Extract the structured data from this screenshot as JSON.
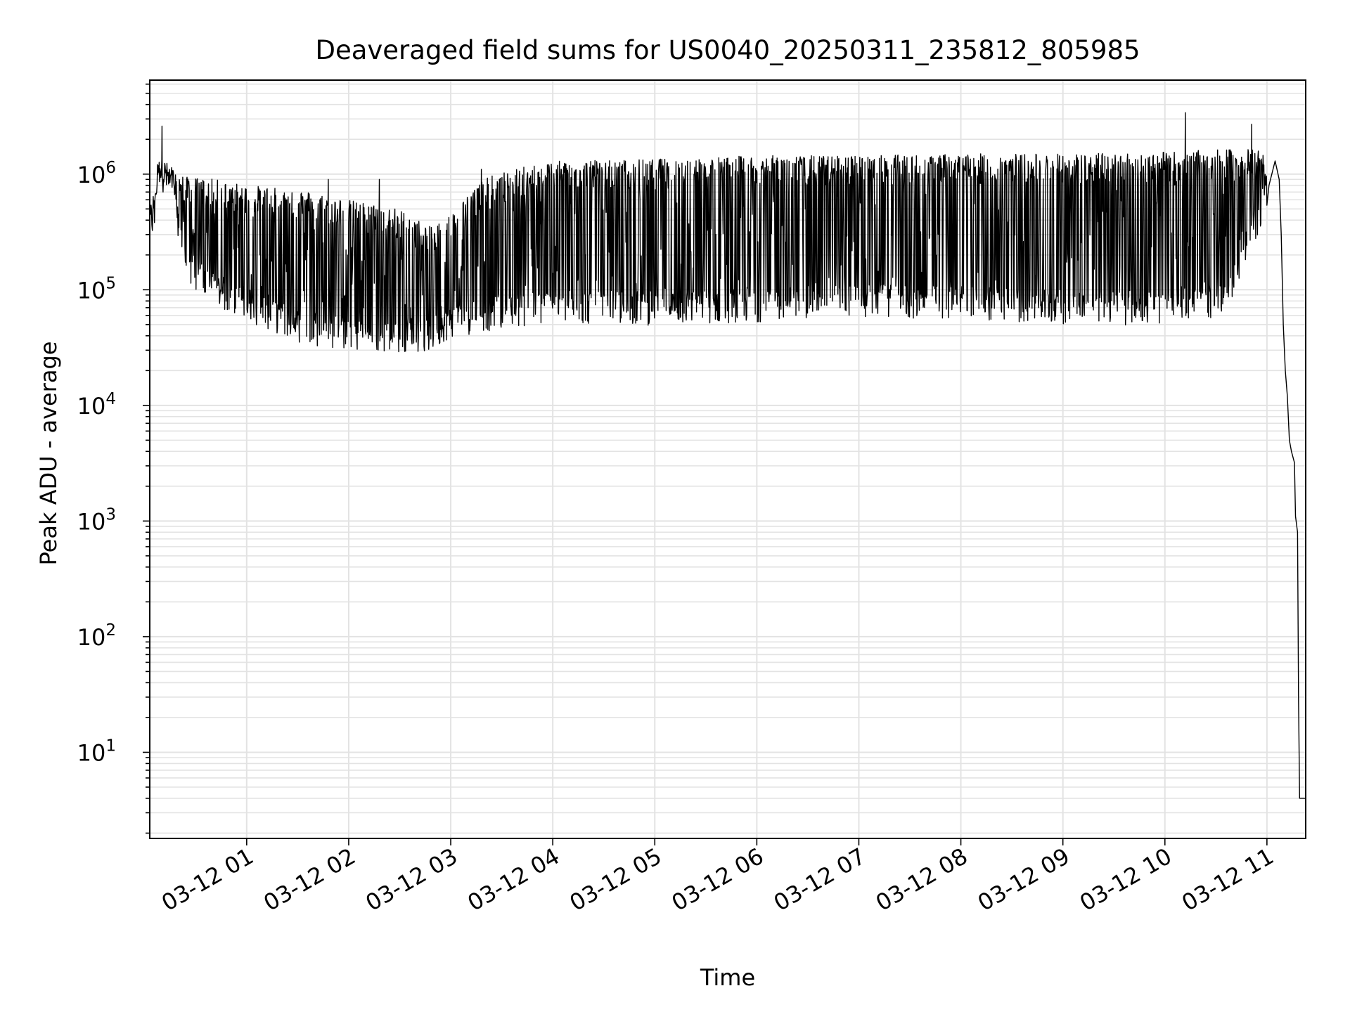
{
  "chart_data": {
    "type": "line",
    "title": "Deaveraged field sums for US0040_20250311_235812_805985",
    "xlabel": "Time",
    "ylabel": "Peak ADU - average",
    "yscale": "log",
    "ylim": [
      1.8,
      6500000
    ],
    "xlim_hours": [
      0.05,
      11.38
    ],
    "grid": true,
    "line_color": "#000000",
    "grid_color": "#e3e3e3",
    "x_ticks": [
      {
        "hour": 1,
        "label": "03-12 01"
      },
      {
        "hour": 2,
        "label": "03-12 02"
      },
      {
        "hour": 3,
        "label": "03-12 03"
      },
      {
        "hour": 4,
        "label": "03-12 04"
      },
      {
        "hour": 5,
        "label": "03-12 05"
      },
      {
        "hour": 6,
        "label": "03-12 06"
      },
      {
        "hour": 7,
        "label": "03-12 07"
      },
      {
        "hour": 8,
        "label": "03-12 08"
      },
      {
        "hour": 9,
        "label": "03-12 09"
      },
      {
        "hour": 10,
        "label": "03-12 10"
      },
      {
        "hour": 11,
        "label": "03-12 11"
      }
    ],
    "y_ticks": [
      {
        "exp": 1,
        "base": "10",
        "sup": "1"
      },
      {
        "exp": 2,
        "base": "10",
        "sup": "2"
      },
      {
        "exp": 3,
        "base": "10",
        "sup": "3"
      },
      {
        "exp": 4,
        "base": "10",
        "sup": "4"
      },
      {
        "exp": 5,
        "base": "10",
        "sup": "5"
      },
      {
        "exp": 6,
        "base": "10",
        "sup": "6"
      }
    ],
    "series": [
      {
        "baseline": [
          [
            0.05,
            380000
          ],
          [
            0.1,
            400000
          ],
          [
            0.12,
            1200000
          ],
          [
            0.25,
            800000
          ],
          [
            0.4,
            180000
          ],
          [
            0.6,
            110000
          ],
          [
            0.8,
            90000
          ],
          [
            1.0,
            75000
          ],
          [
            1.2,
            65000
          ],
          [
            1.5,
            50000
          ],
          [
            1.8,
            45000
          ],
          [
            2.0,
            42000
          ],
          [
            2.3,
            40000
          ],
          [
            2.6,
            42000
          ],
          [
            2.8,
            40000
          ],
          [
            3.0,
            55000
          ],
          [
            3.5,
            65000
          ],
          [
            4.0,
            72000
          ],
          [
            5.0,
            70000
          ],
          [
            6.0,
            75000
          ],
          [
            7.0,
            80000
          ],
          [
            8.0,
            78000
          ],
          [
            9.0,
            72000
          ],
          [
            9.5,
            70000
          ],
          [
            10.0,
            72000
          ],
          [
            10.6,
            85000
          ],
          [
            10.9,
            400000
          ],
          [
            11.02,
            800000
          ],
          [
            11.08,
            1300000
          ],
          [
            11.12,
            900000
          ],
          [
            11.14,
            300000
          ],
          [
            11.16,
            50000
          ],
          [
            11.18,
            20000
          ],
          [
            11.2,
            12000
          ],
          [
            11.22,
            5000
          ],
          [
            11.24,
            4000
          ],
          [
            11.27,
            3200
          ],
          [
            11.3,
            800
          ],
          [
            11.31,
            30
          ],
          [
            11.32,
            4
          ],
          [
            11.38,
            4
          ]
        ],
        "peak_envelope": [
          [
            0.05,
            500000
          ],
          [
            0.15,
            1400000
          ],
          [
            0.4,
            950000
          ],
          [
            0.7,
            900000
          ],
          [
            1.0,
            800000
          ],
          [
            1.5,
            750000
          ],
          [
            2.0,
            600000
          ],
          [
            2.5,
            500000
          ],
          [
            2.8,
            350000
          ],
          [
            3.0,
            450000
          ],
          [
            3.3,
            900000
          ],
          [
            3.6,
            1100000
          ],
          [
            4.0,
            1300000
          ],
          [
            5.0,
            1350000
          ],
          [
            6.0,
            1450000
          ],
          [
            7.0,
            1450000
          ],
          [
            8.0,
            1500000
          ],
          [
            9.0,
            1500000
          ],
          [
            10.0,
            1550000
          ],
          [
            10.3,
            1600000
          ],
          [
            10.8,
            1650000
          ],
          [
            11.0,
            1600000
          ]
        ],
        "spikes": [
          {
            "hour": 0.17,
            "value": 2600000
          },
          {
            "hour": 1.8,
            "value": 900000
          },
          {
            "hour": 2.3,
            "value": 900000
          },
          {
            "hour": 3.3,
            "value": 1100000
          },
          {
            "hour": 10.2,
            "value": 3400000
          },
          {
            "hour": 10.85,
            "value": 2700000
          },
          {
            "hour": 11.28,
            "value": 1100
          }
        ]
      }
    ]
  }
}
